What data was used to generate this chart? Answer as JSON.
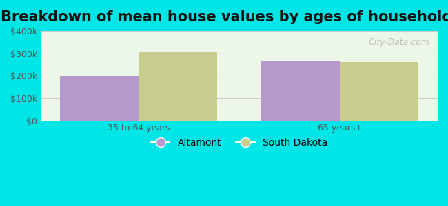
{
  "title": "Breakdown of mean house values by ages of householders",
  "categories": [
    "35 to 64 years",
    "65 years+"
  ],
  "series": [
    {
      "label": "Altamont",
      "values": [
        200000,
        265000
      ],
      "color": "#b899cc"
    },
    {
      "label": "South Dakota",
      "values": [
        305000,
        258000
      ],
      "color": "#c8cd8e"
    }
  ],
  "ylim": [
    0,
    400000
  ],
  "yticks": [
    0,
    100000,
    200000,
    300000,
    400000
  ],
  "ytick_labels": [
    "$0",
    "$100k",
    "$200k",
    "$300k",
    "$400k"
  ],
  "bar_width": 0.28,
  "background_outer": "#00e5e5",
  "background_inner": "#edf7e8",
  "grid_color": "#cccccc",
  "title_fontsize": 15,
  "watermark": "City-Data.com"
}
